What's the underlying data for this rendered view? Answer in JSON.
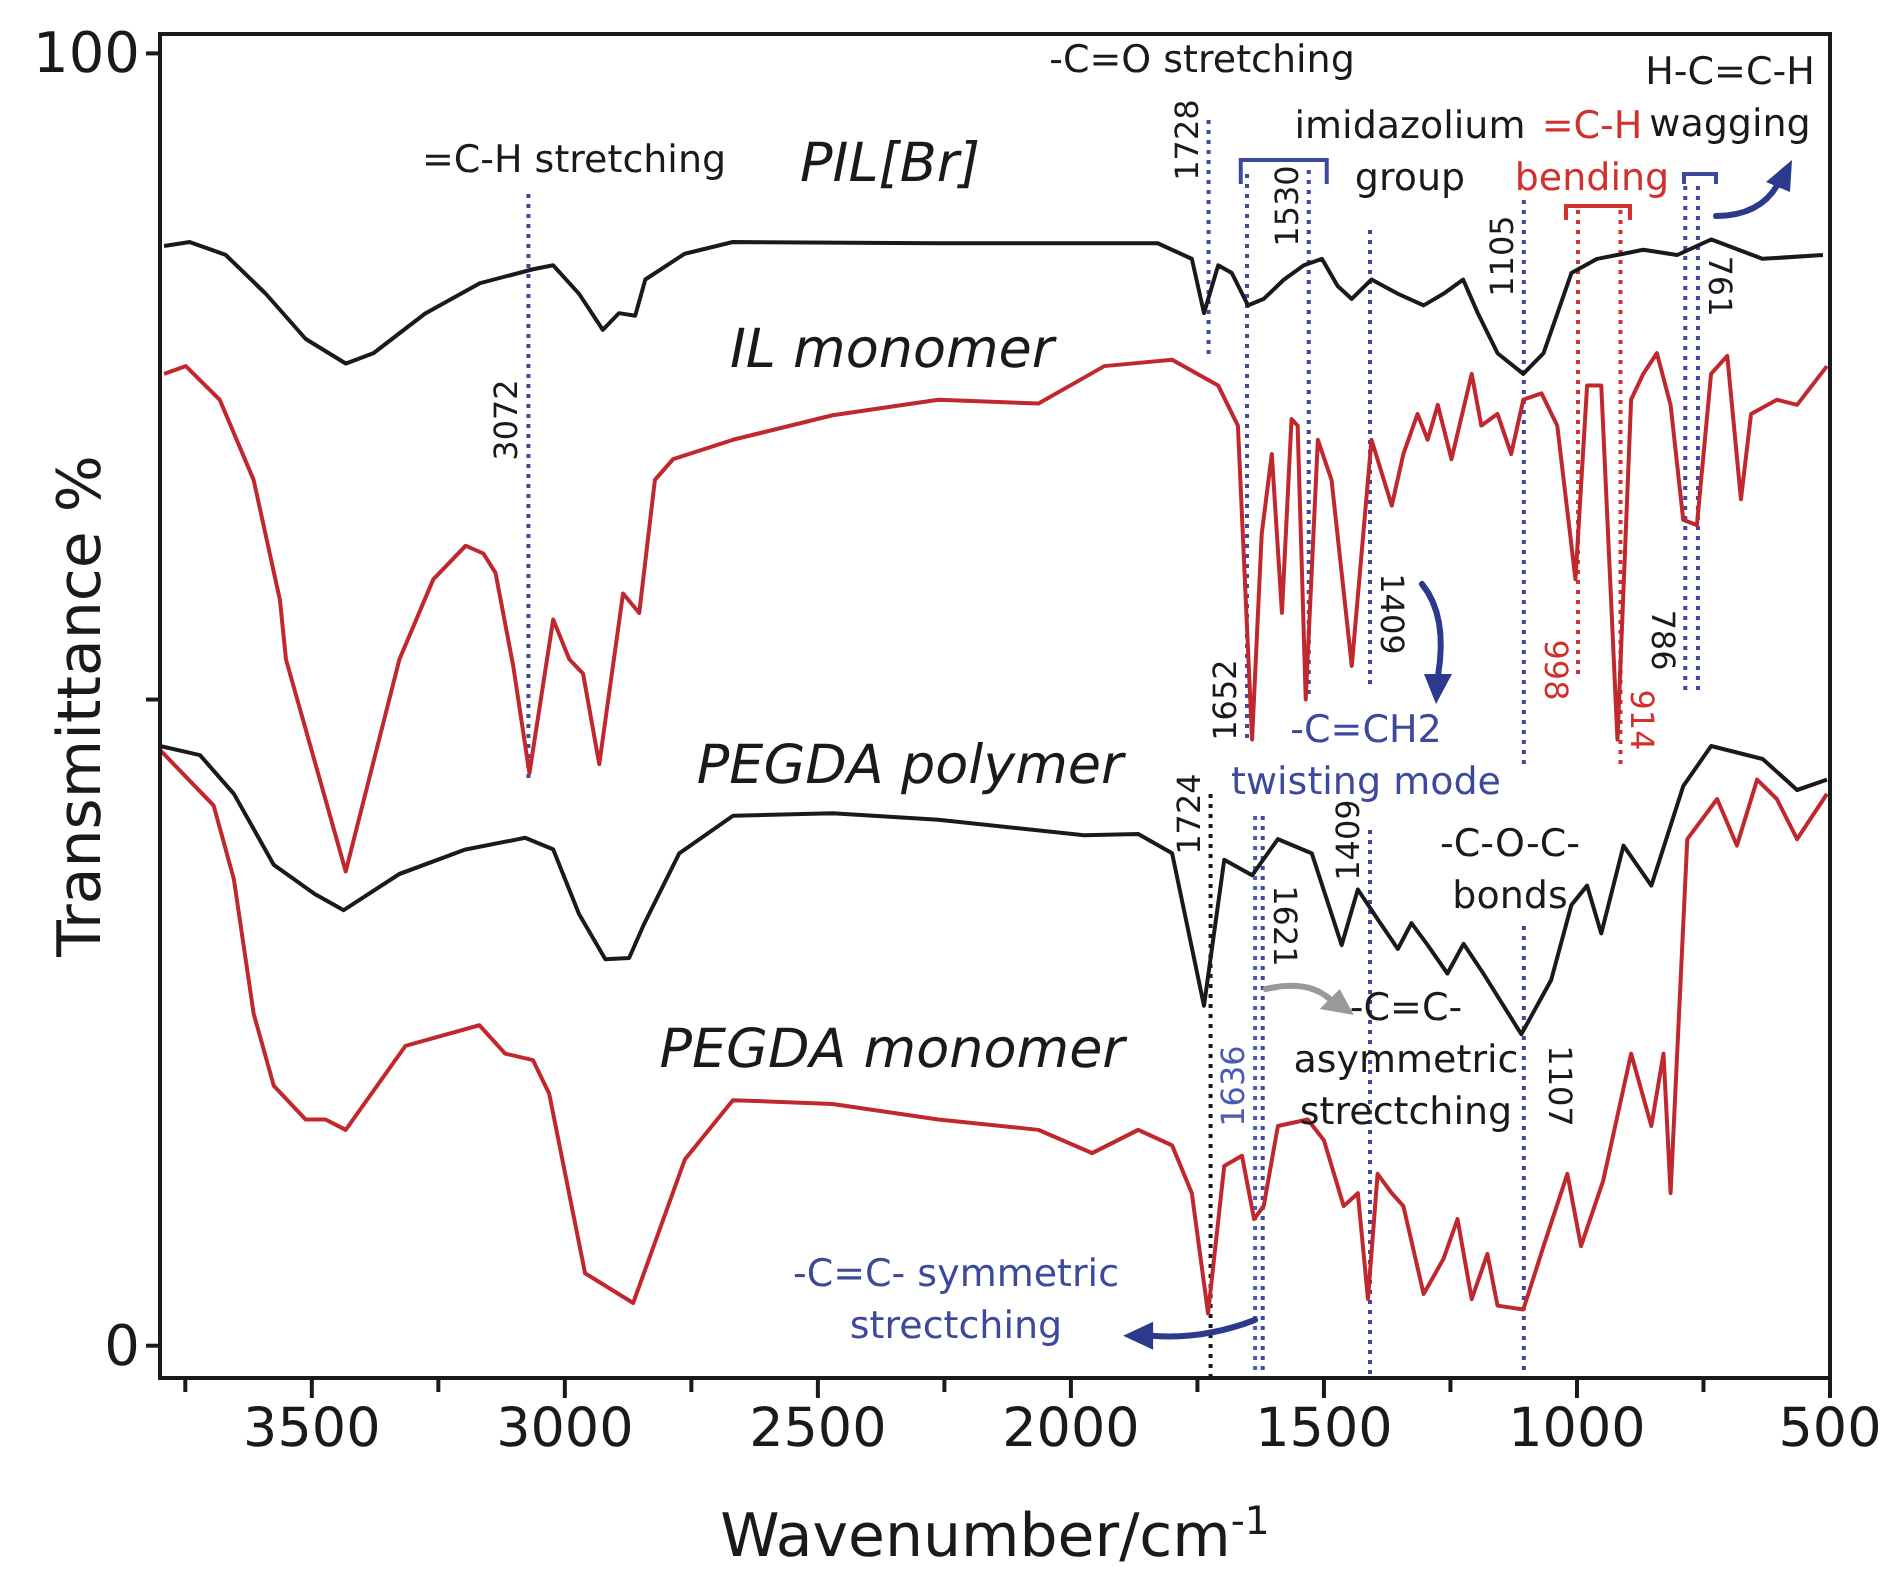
{
  "chart_data": {
    "type": "line",
    "xlabel": "Wavenumber/cm$^{-1}$",
    "ylabel": "Transmittance %",
    "xlim": [
      3800,
      500
    ],
    "ylim": [
      -2.5,
      101.5
    ],
    "xticks": [
      {
        "value": 3750,
        "label": null
      },
      3500,
      {
        "value": 3250,
        "label": null
      },
      3000,
      {
        "value": 2750,
        "label": null
      },
      2500,
      {
        "value": 2250,
        "label": null
      },
      2000,
      {
        "value": 1750,
        "label": null
      },
      1500,
      {
        "value": 1250,
        "label": null
      },
      1000,
      {
        "value": 750,
        "label": null
      },
      500
    ],
    "yticks": [
      0,
      {
        "value": 50,
        "label": null
      },
      100
    ],
    "grid": false,
    "series": [
      {
        "name": "PIL[Br]",
        "color": "#1a1a1a",
        "x": [
          3792,
          3741,
          3670,
          3591,
          3512,
          3433,
          3378,
          3275,
          3169,
          3063,
          3023,
          2972,
          2925,
          2893,
          2861,
          2841,
          2763,
          2668,
          2262,
          1828,
          1761,
          1737,
          1709,
          1682,
          1650,
          1619,
          1579,
          1540,
          1504,
          1473,
          1445,
          1406,
          1354,
          1303,
          1264,
          1225,
          1196,
          1157,
          1106,
          1066,
          1011,
          960,
          908,
          869,
          802,
          735,
          633,
          514
        ],
        "values": [
          85.1,
          85.4,
          84.4,
          81.4,
          77.9,
          76.0,
          76.8,
          79.9,
          82.2,
          83.3,
          83.6,
          81.4,
          78.6,
          79.9,
          79.7,
          82.5,
          84.5,
          85.4,
          85.3,
          85.3,
          84.1,
          79.9,
          83.6,
          83.0,
          80.5,
          81.0,
          82.5,
          83.6,
          84.1,
          82.0,
          81.0,
          82.5,
          81.4,
          80.5,
          81.4,
          82.5,
          79.9,
          76.8,
          75.2,
          76.8,
          83.0,
          84.1,
          84.5,
          84.8,
          84.4,
          85.6,
          84.1,
          84.4
        ]
      },
      {
        "name": "IL monomer",
        "color": "#c0282d",
        "x": [
          3792,
          3749,
          3682,
          3615,
          3563,
          3551,
          3433,
          3327,
          3260,
          3196,
          3161,
          3137,
          3102,
          3070,
          3023,
          2991,
          2964,
          2932,
          2885,
          2853,
          2822,
          2786,
          2668,
          2471,
          2262,
          2064,
          1934,
          1800,
          1709,
          1670,
          1642,
          1623,
          1603,
          1583,
          1564,
          1552,
          1536,
          1512,
          1485,
          1445,
          1406,
          1366,
          1343,
          1315,
          1295,
          1275,
          1248,
          1208,
          1189,
          1157,
          1130,
          1106,
          1070,
          1039,
          1003,
          980,
          952,
          920,
          893,
          869,
          842,
          815,
          790,
          763,
          735,
          703,
          676,
          656,
          605,
          565,
          506
        ],
        "values": [
          75.2,
          75.8,
          73.2,
          67.0,
          57.7,
          53.1,
          36.7,
          53.1,
          59.3,
          61.9,
          61.3,
          59.8,
          52.6,
          44.3,
          56.2,
          53.1,
          52.0,
          45.0,
          58.2,
          56.7,
          67.0,
          68.6,
          70.1,
          72.0,
          73.2,
          72.9,
          75.8,
          76.3,
          74.3,
          71.2,
          46.9,
          62.8,
          69.0,
          56.7,
          71.7,
          71.2,
          50.0,
          70.1,
          67.0,
          52.6,
          70.1,
          65.0,
          69.0,
          72.1,
          70.1,
          72.8,
          68.6,
          75.2,
          71.2,
          72.1,
          69.0,
          73.2,
          73.7,
          71.2,
          59.3,
          74.3,
          74.3,
          46.9,
          73.2,
          75.2,
          76.8,
          72.8,
          63.9,
          63.5,
          75.2,
          76.6,
          65.5,
          72.1,
          73.2,
          72.8,
          75.8
        ]
      },
      {
        "name": "PEGDA polymer",
        "color": "#1a1a1a",
        "x": [
          3800,
          3721,
          3654,
          3575,
          3496,
          3437,
          3327,
          3196,
          3078,
          3023,
          2972,
          2920,
          2873,
          2845,
          2774,
          2668,
          2471,
          2262,
          1974,
          1867,
          1800,
          1737,
          1697,
          1642,
          1591,
          1524,
          1465,
          1433,
          1394,
          1354,
          1327,
          1295,
          1256,
          1224,
          1185,
          1110,
          1051,
          1011,
          980,
          952,
          908,
          853,
          790,
          735,
          633,
          565,
          506
        ],
        "values": [
          46.4,
          45.7,
          42.7,
          37.2,
          35.0,
          33.7,
          36.5,
          38.4,
          39.3,
          38.4,
          33.4,
          29.9,
          30.0,
          32.5,
          38.1,
          41.0,
          41.2,
          40.7,
          39.5,
          39.6,
          38.1,
          26.3,
          37.6,
          36.4,
          39.2,
          38.1,
          31.0,
          35.3,
          33.0,
          30.7,
          32.7,
          31.0,
          28.8,
          31.1,
          28.8,
          24.1,
          28.3,
          34.1,
          35.6,
          31.9,
          38.7,
          35.6,
          43.3,
          46.4,
          45.4,
          43.0,
          43.8
        ]
      },
      {
        "name": "PEGDA monomer",
        "color": "#c0282d",
        "x": [
          3800,
          3694,
          3654,
          3615,
          3575,
          3512,
          3473,
          3433,
          3315,
          3169,
          3118,
          3063,
          3031,
          2960,
          2865,
          2763,
          2668,
          2471,
          2262,
          2064,
          1958,
          1867,
          1800,
          1761,
          1729,
          1697,
          1662,
          1638,
          1619,
          1591,
          1532,
          1500,
          1461,
          1433,
          1413,
          1394,
          1366,
          1343,
          1303,
          1264,
          1236,
          1208,
          1177,
          1157,
          1106,
          1066,
          1019,
          992,
          948,
          893,
          853,
          829,
          815,
          782,
          723,
          684,
          644,
          605,
          565,
          506
        ],
        "values": [
          46.1,
          41.8,
          36.1,
          25.7,
          20.1,
          17.5,
          17.5,
          16.7,
          23.2,
          24.8,
          22.6,
          22.1,
          19.5,
          5.6,
          3.3,
          14.4,
          19.0,
          18.7,
          17.5,
          16.7,
          14.9,
          16.7,
          15.5,
          11.8,
          2.5,
          13.9,
          14.7,
          9.8,
          10.8,
          17.0,
          17.5,
          15.9,
          10.8,
          11.8,
          3.6,
          13.3,
          11.8,
          10.8,
          4.0,
          6.7,
          9.8,
          3.6,
          7.1,
          3.1,
          2.8,
          7.7,
          13.3,
          7.7,
          12.8,
          22.6,
          17.0,
          22.6,
          11.8,
          39.2,
          42.3,
          38.7,
          43.8,
          42.3,
          39.2,
          42.7
        ]
      }
    ],
    "ref_lines": [
      {
        "axis": "x",
        "value": 3072,
        "label": "3072",
        "color": "#3d4a9c",
        "line_style": "dotted"
      },
      {
        "axis": "x",
        "value": 1728,
        "label": "1728",
        "color": "#3d4a9c",
        "line_style": "dotted"
      },
      {
        "axis": "x",
        "value": 1652,
        "label": "1652",
        "color": "#3d4a9c",
        "line_style": "dotted"
      },
      {
        "axis": "x",
        "value": 1530,
        "label": "1530",
        "color": "#3d4a9c",
        "line_style": "dotted"
      },
      {
        "axis": "x",
        "value": 1409,
        "label": "1409",
        "color": "#3d4a9c",
        "line_style": "dotted"
      },
      {
        "axis": "x",
        "value": 1105,
        "label": "1105",
        "color": "#3d4a9c",
        "line_style": "dotted"
      },
      {
        "axis": "x",
        "value": 998,
        "label": "998",
        "color": "#d0312d",
        "line_style": "dotted"
      },
      {
        "axis": "x",
        "value": 914,
        "label": "914",
        "color": "#d0312d",
        "line_style": "dotted"
      },
      {
        "axis": "x",
        "value": 786,
        "label": "786",
        "color": "#3d4a9c",
        "line_style": "dotted"
      },
      {
        "axis": "x",
        "value": 761,
        "label": "761",
        "color": "#3d4a9c",
        "line_style": "dotted"
      },
      {
        "axis": "x",
        "value": 1724,
        "label": "1724",
        "color": "#1a1a1a",
        "line_style": "dotted"
      },
      {
        "axis": "x",
        "value": 1636,
        "label": "1636",
        "color": "#4a5bb0",
        "line_style": "dotted"
      },
      {
        "axis": "x",
        "value": 1621,
        "label": "1621",
        "color": "#3d4a9c",
        "line_style": "dotted"
      }
    ],
    "annotations": [
      "=C-H stretching",
      "-C=O stretching",
      {
        "text": "imidazolium\ngroup",
        "x": 1530,
        "y": 89.9
      },
      "=C-H\nbending",
      "H-C=C-H\nwagging",
      "-C=CH2\ntwisting mode",
      "-C-O-C-\nbonds",
      {
        "text": "-C=C-\nasymmetric\nstrectching",
        "x": 1615,
        "y": 27.6
      },
      {
        "text": "-C=C- symmetric\nstrectching",
        "x": 1636,
        "y": 2.0
      },
      "1107"
    ]
  }
}
